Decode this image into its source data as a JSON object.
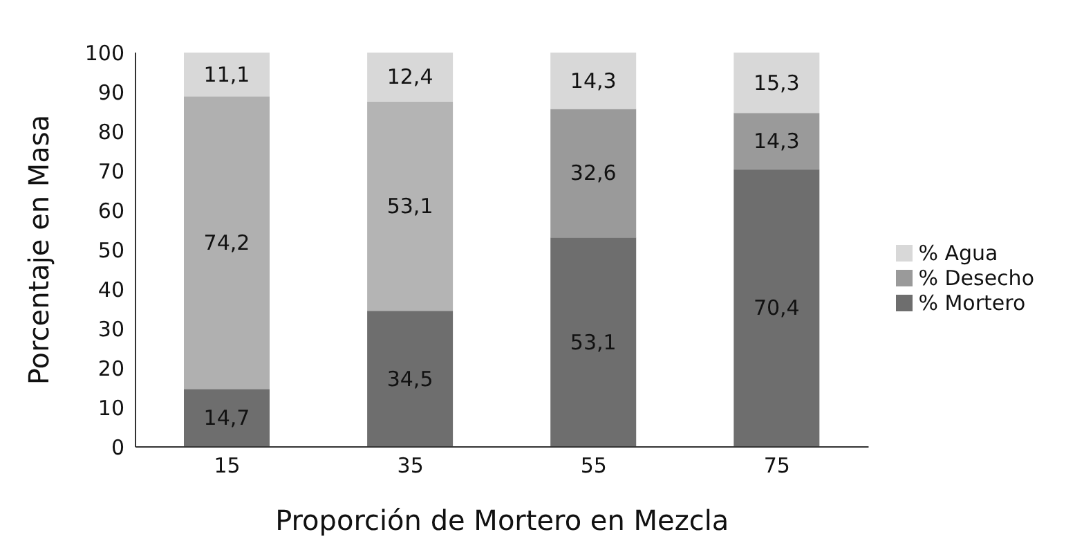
{
  "chart_data": {
    "type": "bar",
    "stacked": true,
    "xlabel": "Proporción de Mortero en Mezcla",
    "ylabel": "Porcentaje en Masa",
    "categories": [
      "15",
      "35",
      "55",
      "75"
    ],
    "series": [
      {
        "name": "% Mortero",
        "color": "#6e6e6e",
        "colors": [
          "#6e6e6e",
          "#6e6e6e",
          "#6e6e6e",
          "#6e6e6e"
        ],
        "values": [
          14.7,
          34.5,
          53.1,
          70.4
        ],
        "value_labels": [
          "14,7",
          "34,5",
          "53,1",
          "70,4"
        ]
      },
      {
        "name": "% Desecho",
        "color": "#9a9a9a",
        "colors": [
          "#b0b0b0",
          "#b4b4b4",
          "#9a9a9a",
          "#9a9a9a"
        ],
        "values": [
          74.2,
          53.1,
          32.6,
          14.3
        ],
        "value_labels": [
          "74,2",
          "53,1",
          "32,6",
          "14,3"
        ]
      },
      {
        "name": "% Agua",
        "color": "#d8d8d8",
        "colors": [
          "#d8d8d8",
          "#d8d8d8",
          "#d8d8d8",
          "#d8d8d8"
        ],
        "values": [
          11.1,
          12.4,
          14.3,
          15.3
        ],
        "value_labels": [
          "11,1",
          "12,4",
          "14,3",
          "15,3"
        ]
      }
    ],
    "ylim": [
      0,
      100
    ],
    "yticks": [
      0,
      10,
      20,
      30,
      40,
      50,
      60,
      70,
      80,
      90,
      100
    ],
    "grid": false,
    "legend": "right"
  }
}
